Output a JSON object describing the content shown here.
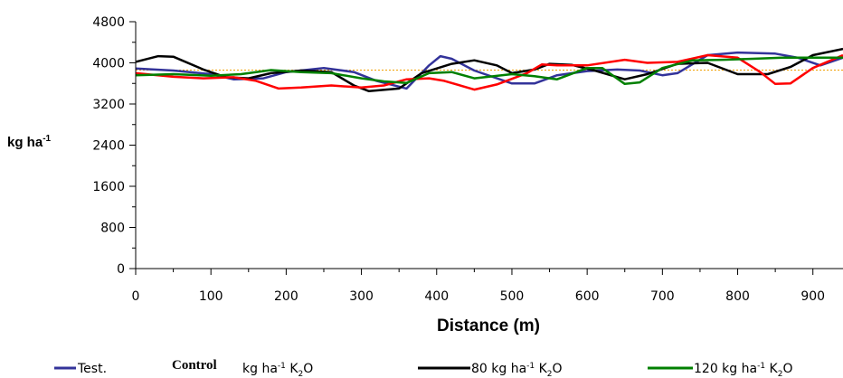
{
  "chart_data": {
    "type": "line",
    "title": "",
    "xlabel": "Distance (m)",
    "ylabel": "kg ha",
    "ylabel_sup": "-1",
    "xlim": [
      0,
      940
    ],
    "ylim": [
      0,
      4800
    ],
    "xticks": [
      0,
      100,
      200,
      300,
      400,
      500,
      600,
      700,
      800,
      900
    ],
    "yticks": [
      0,
      800,
      1600,
      2400,
      3200,
      4000,
      4800
    ],
    "reference_line": {
      "y": 3860,
      "color": "#f0a000"
    },
    "series": [
      {
        "color": "#33339a",
        "points": [
          [
            0,
            3890
          ],
          [
            50,
            3850
          ],
          [
            100,
            3780
          ],
          [
            130,
            3680
          ],
          [
            170,
            3700
          ],
          [
            200,
            3820
          ],
          [
            250,
            3900
          ],
          [
            290,
            3820
          ],
          [
            320,
            3650
          ],
          [
            360,
            3500
          ],
          [
            390,
            3950
          ],
          [
            405,
            4130
          ],
          [
            420,
            4080
          ],
          [
            450,
            3850
          ],
          [
            500,
            3600
          ],
          [
            530,
            3600
          ],
          [
            560,
            3760
          ],
          [
            600,
            3840
          ],
          [
            640,
            3870
          ],
          [
            670,
            3850
          ],
          [
            700,
            3760
          ],
          [
            720,
            3800
          ],
          [
            760,
            4150
          ],
          [
            800,
            4200
          ],
          [
            850,
            4180
          ],
          [
            880,
            4100
          ],
          [
            910,
            3950
          ],
          [
            940,
            4100
          ]
        ]
      },
      {
        "color": "#000000",
        "points": [
          [
            0,
            4020
          ],
          [
            30,
            4130
          ],
          [
            50,
            4120
          ],
          [
            90,
            3870
          ],
          [
            120,
            3720
          ],
          [
            150,
            3700
          ],
          [
            180,
            3800
          ],
          [
            220,
            3850
          ],
          [
            260,
            3820
          ],
          [
            290,
            3560
          ],
          [
            310,
            3450
          ],
          [
            350,
            3500
          ],
          [
            380,
            3800
          ],
          [
            420,
            3980
          ],
          [
            450,
            4050
          ],
          [
            480,
            3950
          ],
          [
            500,
            3800
          ],
          [
            530,
            3870
          ],
          [
            550,
            3980
          ],
          [
            580,
            3960
          ],
          [
            610,
            3850
          ],
          [
            650,
            3680
          ],
          [
            680,
            3780
          ],
          [
            720,
            3980
          ],
          [
            760,
            4000
          ],
          [
            800,
            3780
          ],
          [
            840,
            3780
          ],
          [
            870,
            3920
          ],
          [
            900,
            4150
          ],
          [
            940,
            4270
          ]
        ]
      },
      {
        "color": "#ff0000",
        "points": [
          [
            0,
            3800
          ],
          [
            50,
            3730
          ],
          [
            90,
            3700
          ],
          [
            130,
            3720
          ],
          [
            160,
            3650
          ],
          [
            190,
            3500
          ],
          [
            220,
            3520
          ],
          [
            260,
            3560
          ],
          [
            300,
            3520
          ],
          [
            330,
            3560
          ],
          [
            360,
            3680
          ],
          [
            390,
            3700
          ],
          [
            410,
            3650
          ],
          [
            450,
            3480
          ],
          [
            480,
            3580
          ],
          [
            520,
            3800
          ],
          [
            540,
            3970
          ],
          [
            560,
            3950
          ],
          [
            600,
            3950
          ],
          [
            650,
            4060
          ],
          [
            680,
            4000
          ],
          [
            720,
            4020
          ],
          [
            760,
            4150
          ],
          [
            800,
            4100
          ],
          [
            830,
            3820
          ],
          [
            850,
            3590
          ],
          [
            870,
            3600
          ],
          [
            900,
            3900
          ],
          [
            940,
            4150
          ]
        ]
      },
      {
        "color": "#008000",
        "points": [
          [
            0,
            3760
          ],
          [
            50,
            3780
          ],
          [
            100,
            3750
          ],
          [
            140,
            3780
          ],
          [
            180,
            3860
          ],
          [
            220,
            3820
          ],
          [
            260,
            3800
          ],
          [
            300,
            3700
          ],
          [
            330,
            3640
          ],
          [
            360,
            3610
          ],
          [
            390,
            3800
          ],
          [
            420,
            3820
          ],
          [
            450,
            3700
          ],
          [
            500,
            3780
          ],
          [
            530,
            3740
          ],
          [
            560,
            3680
          ],
          [
            600,
            3900
          ],
          [
            620,
            3900
          ],
          [
            650,
            3590
          ],
          [
            670,
            3620
          ],
          [
            700,
            3900
          ],
          [
            740,
            4050
          ],
          [
            780,
            4060
          ],
          [
            820,
            4080
          ],
          [
            860,
            4100
          ],
          [
            900,
            4100
          ],
          [
            940,
            4100
          ]
        ]
      }
    ]
  },
  "legend": {
    "items": [
      {
        "prefix": "Test.",
        "bold": "Control",
        "suffix": "kg ha",
        "sup": "-1",
        "tail": " K",
        "sub": "2",
        "end": "O",
        "color": "#33339a"
      },
      {
        "prefix": "80 kg ha",
        "sup": "-1",
        "tail": " K",
        "sub": "2",
        "end": "O",
        "color": "#000000"
      },
      {
        "prefix": "120 kg ha",
        "sup": "-1",
        "tail": " K",
        "sub": "2",
        "end": "O",
        "color": "#008000"
      }
    ]
  }
}
